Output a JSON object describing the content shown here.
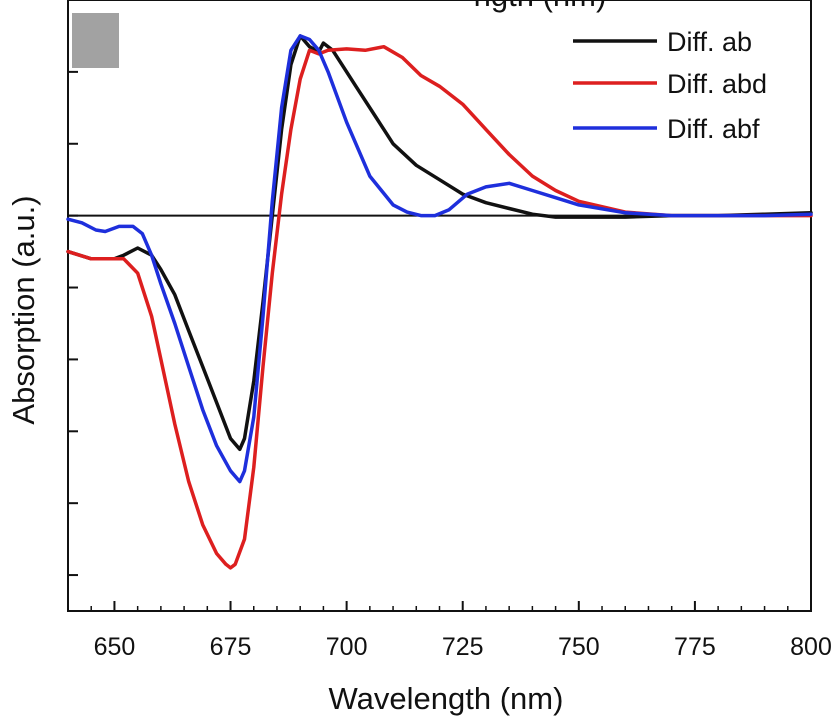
{
  "chart_data": {
    "type": "line",
    "xlabel": "Wavelength (nm)",
    "ylabel": "Absorption (a.u.)",
    "top_label_partial": "ngth (nm)",
    "xlim": [
      640,
      800
    ],
    "ylim": [
      -5.5,
      3.0
    ],
    "x_ticks": [
      "650",
      "675",
      "700",
      "725",
      "750",
      "775",
      "800"
    ],
    "x_tick_values": [
      650,
      675,
      700,
      725,
      750,
      775,
      800
    ],
    "y_major_tick_values": [
      2,
      1,
      0,
      -1,
      -2,
      -3,
      -4,
      -5
    ],
    "zero_line": true,
    "grid": false,
    "legend_position": "top-right",
    "series": [
      {
        "name": "Diff. ab",
        "color": "#111111",
        "x": [
          640,
          645,
          650,
          652,
          655,
          658,
          660,
          663,
          666,
          669,
          672,
          675,
          677,
          678,
          680,
          682,
          684,
          686,
          688,
          690,
          692,
          694,
          695,
          697,
          699,
          702,
          706,
          710,
          715,
          720,
          725,
          730,
          735,
          740,
          745,
          750,
          760,
          770,
          780,
          790,
          800
        ],
        "y": [
          -0.5,
          -0.6,
          -0.6,
          -0.55,
          -0.45,
          -0.55,
          -0.75,
          -1.1,
          -1.6,
          -2.1,
          -2.6,
          -3.1,
          -3.25,
          -3.1,
          -2.3,
          -1.2,
          0.0,
          1.2,
          2.1,
          2.5,
          2.35,
          2.28,
          2.4,
          2.3,
          2.1,
          1.8,
          1.4,
          1.0,
          0.7,
          0.5,
          0.3,
          0.18,
          0.1,
          0.02,
          -0.02,
          -0.02,
          -0.02,
          0.0,
          0.0,
          0.02,
          0.04
        ]
      },
      {
        "name": "Diff. abd",
        "color": "#dd1f1f",
        "x": [
          640,
          645,
          650,
          652,
          655,
          658,
          660,
          663,
          666,
          669,
          672,
          674,
          675,
          676,
          678,
          680,
          682,
          684,
          686,
          688,
          690,
          692,
          694,
          696,
          700,
          704,
          708,
          712,
          716,
          720,
          725,
          730,
          735,
          740,
          745,
          750,
          760,
          770,
          780,
          790,
          800
        ],
        "y": [
          -0.5,
          -0.6,
          -0.6,
          -0.6,
          -0.8,
          -1.4,
          -2.0,
          -2.9,
          -3.7,
          -4.3,
          -4.7,
          -4.85,
          -4.9,
          -4.85,
          -4.5,
          -3.5,
          -2.1,
          -0.8,
          0.3,
          1.2,
          1.9,
          2.3,
          2.25,
          2.3,
          2.32,
          2.3,
          2.35,
          2.2,
          1.95,
          1.8,
          1.55,
          1.2,
          0.85,
          0.55,
          0.35,
          0.2,
          0.05,
          0.0,
          0.0,
          0.0,
          0.0
        ]
      },
      {
        "name": "Diff. abf",
        "color": "#1e2fdc",
        "x": [
          640,
          643,
          646,
          648,
          651,
          654,
          656,
          658,
          660,
          663,
          666,
          669,
          672,
          675,
          677,
          678,
          680,
          682,
          684,
          686,
          688,
          690,
          692,
          694,
          696,
          700,
          705,
          710,
          713,
          716,
          719,
          722,
          726,
          730,
          735,
          740,
          745,
          750,
          760,
          770,
          780,
          790,
          800
        ],
        "y": [
          -0.05,
          -0.1,
          -0.2,
          -0.22,
          -0.15,
          -0.15,
          -0.25,
          -0.55,
          -0.95,
          -1.5,
          -2.1,
          -2.7,
          -3.2,
          -3.55,
          -3.7,
          -3.55,
          -2.8,
          -1.4,
          0.2,
          1.5,
          2.3,
          2.5,
          2.45,
          2.3,
          2.0,
          1.3,
          0.55,
          0.15,
          0.05,
          0.0,
          0.0,
          0.08,
          0.3,
          0.4,
          0.45,
          0.35,
          0.25,
          0.15,
          0.04,
          0.0,
          0.0,
          0.0,
          0.02
        ]
      }
    ]
  }
}
